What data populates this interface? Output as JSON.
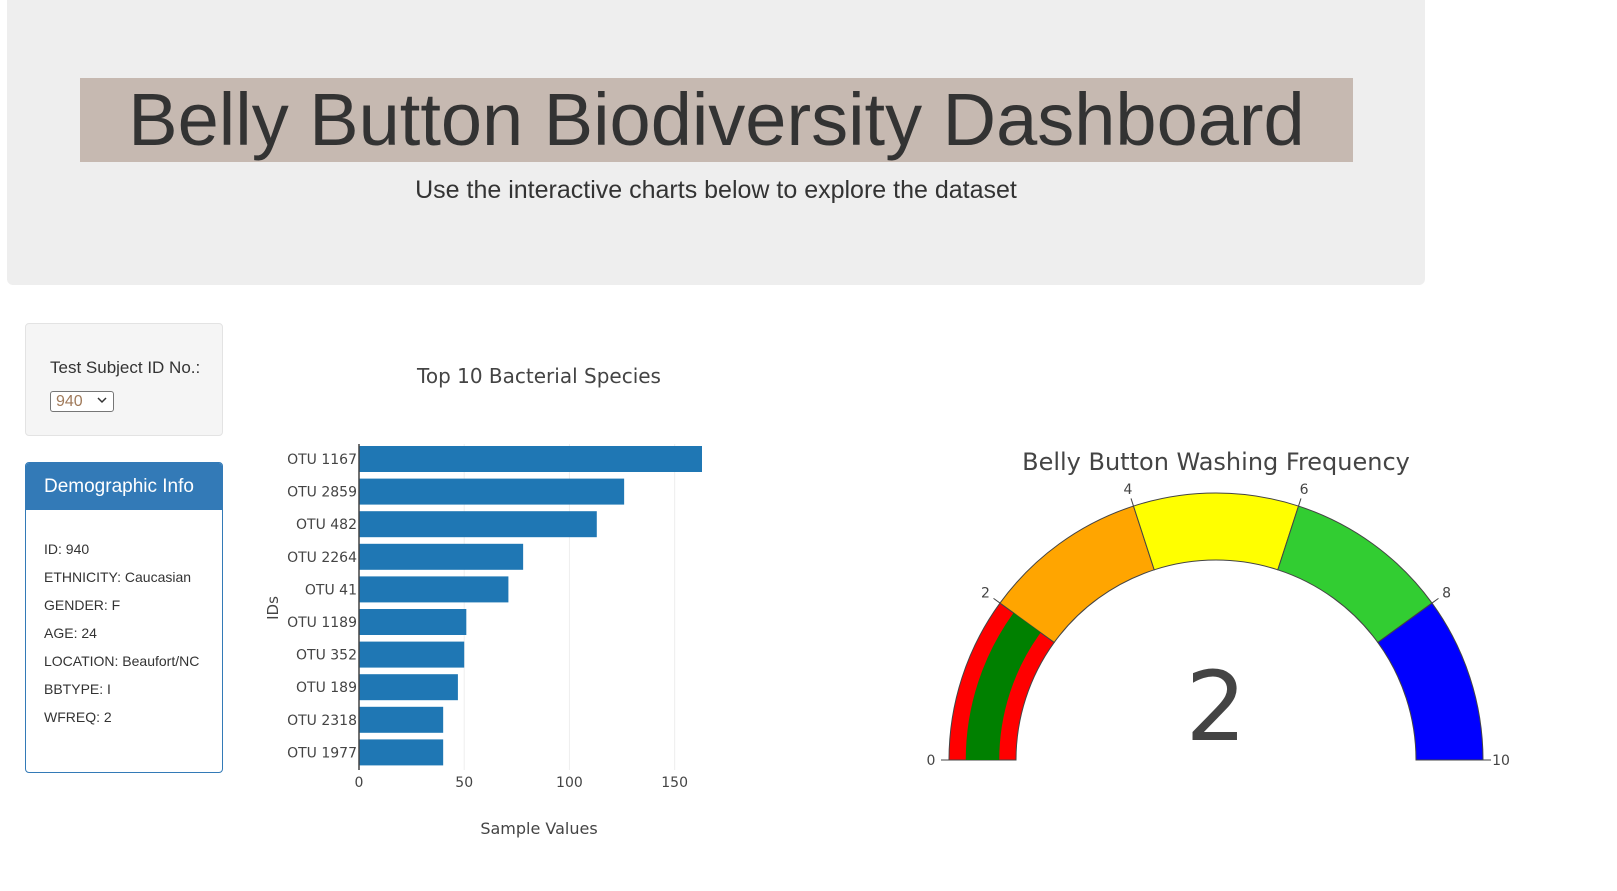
{
  "header": {
    "title": "Belly Button Biodiversity Dashboard",
    "subtitle": "Use the interactive charts below to explore the dataset"
  },
  "selector": {
    "label": "Test Subject ID No.:",
    "selected": "940"
  },
  "demographics": {
    "heading": "Demographic Info",
    "items": [
      "ID: 940",
      "ETHNICITY: Caucasian",
      "GENDER: F",
      "AGE: 24",
      "LOCATION: Beaufort/NC",
      "BBTYPE: I",
      "WFREQ: 2"
    ]
  },
  "colors": {
    "bar": "#1f77b4",
    "panel": "#337ab7",
    "title_band": "#c6b9b1"
  },
  "chart_data": [
    {
      "type": "bar",
      "orientation": "horizontal",
      "title": "Top 10 Bacterial Species",
      "xlabel": "Sample Values",
      "ylabel": "IDs",
      "categories": [
        "OTU 1167",
        "OTU 2859",
        "OTU 482",
        "OTU 2264",
        "OTU 41",
        "OTU 1189",
        "OTU 352",
        "OTU 189",
        "OTU 2318",
        "OTU 1977"
      ],
      "values": [
        163,
        126,
        113,
        78,
        71,
        51,
        50,
        47,
        40,
        40
      ],
      "xlim": [
        0,
        163
      ],
      "xticks": [
        "0",
        "50",
        "100",
        "150"
      ],
      "grid": true
    },
    {
      "type": "gauge",
      "title": "Belly Button Washing Frequency",
      "value": 2,
      "value_text": "2",
      "range": [
        0,
        10
      ],
      "ticks": [
        "0",
        "2",
        "4",
        "6",
        "8",
        "10"
      ],
      "steps": [
        {
          "range": [
            0,
            2
          ],
          "color": "#ff0000"
        },
        {
          "range": [
            2,
            4
          ],
          "color": "#ffa500"
        },
        {
          "range": [
            4,
            6
          ],
          "color": "#ffff00"
        },
        {
          "range": [
            6,
            8
          ],
          "color": "#32cd32"
        },
        {
          "range": [
            8,
            10
          ],
          "color": "#0000ff"
        }
      ],
      "bar_color": "#008000"
    }
  ]
}
